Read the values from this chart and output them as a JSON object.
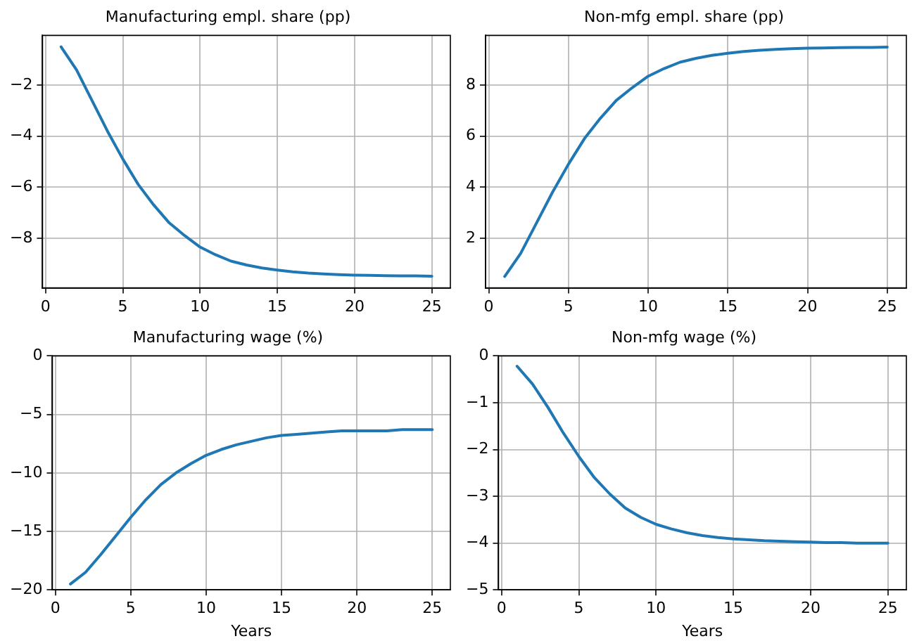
{
  "chart_data": [
    {
      "type": "line",
      "title": "Manufacturing empl. share (pp)",
      "x": [
        1,
        2,
        3,
        4,
        5,
        6,
        7,
        8,
        9,
        10,
        11,
        12,
        13,
        14,
        15,
        16,
        17,
        18,
        19,
        20,
        21,
        22,
        23,
        24,
        25
      ],
      "series": [
        {
          "color": "#1f77b4",
          "values": [
            -0.5,
            -1.4,
            -2.6,
            -3.8,
            -4.9,
            -5.9,
            -6.7,
            -7.4,
            -7.9,
            -8.35,
            -8.65,
            -8.9,
            -9.05,
            -9.17,
            -9.25,
            -9.32,
            -9.37,
            -9.4,
            -9.43,
            -9.45,
            -9.46,
            -9.47,
            -9.48,
            -9.48,
            -9.49
          ]
        }
      ],
      "xlim": [
        -0.2,
        26.2
      ],
      "xticks": [
        0,
        5,
        10,
        15,
        20,
        25
      ],
      "ylim": [
        -9.95,
        -0.05
      ],
      "yticks": [
        {
          "value": -8,
          "label": "−8"
        },
        {
          "value": -6,
          "label": "−6"
        },
        {
          "value": -4,
          "label": "−4"
        },
        {
          "value": -2,
          "label": "−2"
        }
      ],
      "grid": true,
      "legend": false,
      "marker": "none",
      "line_style": "solid"
    },
    {
      "type": "line",
      "title": "Non-mfg empl. share (pp)",
      "x": [
        1,
        2,
        3,
        4,
        5,
        6,
        7,
        8,
        9,
        10,
        11,
        12,
        13,
        14,
        15,
        16,
        17,
        18,
        19,
        20,
        21,
        22,
        23,
        24,
        25
      ],
      "series": [
        {
          "color": "#1f77b4",
          "values": [
            0.5,
            1.4,
            2.6,
            3.8,
            4.9,
            5.9,
            6.7,
            7.4,
            7.9,
            8.35,
            8.65,
            8.9,
            9.05,
            9.17,
            9.25,
            9.32,
            9.37,
            9.4,
            9.43,
            9.45,
            9.46,
            9.47,
            9.48,
            9.48,
            9.49
          ]
        }
      ],
      "xlim": [
        -0.2,
        26.2
      ],
      "xticks": [
        0,
        5,
        10,
        15,
        20,
        25
      ],
      "ylim": [
        0.05,
        9.95
      ],
      "yticks": [
        2,
        4,
        6,
        8
      ],
      "grid": true,
      "legend": false,
      "marker": "none",
      "line_style": "solid"
    },
    {
      "type": "line",
      "title": "Manufacturing wage (%)",
      "xlabel": "Years",
      "x": [
        1,
        2,
        3,
        4,
        5,
        6,
        7,
        8,
        9,
        10,
        11,
        12,
        13,
        14,
        15,
        16,
        17,
        18,
        19,
        20,
        21,
        22,
        23,
        24,
        25
      ],
      "series": [
        {
          "color": "#1f77b4",
          "values": [
            -19.5,
            -18.5,
            -17.0,
            -15.4,
            -13.8,
            -12.3,
            -11.0,
            -10.0,
            -9.2,
            -8.5,
            -8.0,
            -7.6,
            -7.3,
            -7.0,
            -6.8,
            -6.7,
            -6.6,
            -6.5,
            -6.4,
            -6.4,
            -6.4,
            -6.4,
            -6.3,
            -6.3,
            -6.3
          ]
        }
      ],
      "xlim": [
        -0.2,
        26.2
      ],
      "xticks": [
        0,
        5,
        10,
        15,
        20,
        25
      ],
      "ylim": [
        -20,
        0
      ],
      "yticks": [
        {
          "value": -20,
          "label": "−20"
        },
        {
          "value": -15,
          "label": "−15"
        },
        {
          "value": -10,
          "label": "−10"
        },
        {
          "value": -5,
          "label": "−5"
        },
        0
      ],
      "grid": true,
      "legend": false,
      "marker": "none",
      "line_style": "solid"
    },
    {
      "type": "line",
      "title": "Non-mfg wage (%)",
      "xlabel": "Years",
      "x": [
        1,
        2,
        3,
        4,
        5,
        6,
        7,
        8,
        9,
        10,
        11,
        12,
        13,
        14,
        15,
        16,
        17,
        18,
        19,
        20,
        21,
        22,
        23,
        24,
        25
      ],
      "series": [
        {
          "color": "#1f77b4",
          "values": [
            -0.22,
            -0.6,
            -1.1,
            -1.65,
            -2.15,
            -2.6,
            -2.95,
            -3.25,
            -3.45,
            -3.6,
            -3.7,
            -3.78,
            -3.84,
            -3.88,
            -3.91,
            -3.93,
            -3.95,
            -3.96,
            -3.97,
            -3.98,
            -3.99,
            -3.99,
            -4.0,
            -4.0,
            -4.0
          ]
        }
      ],
      "xlim": [
        -0.2,
        26.2
      ],
      "xticks": [
        0,
        5,
        10,
        15,
        20,
        25
      ],
      "ylim": [
        -5,
        0
      ],
      "yticks": [
        {
          "value": -5,
          "label": "−5"
        },
        {
          "value": -4,
          "label": "−4"
        },
        {
          "value": -3,
          "label": "−3"
        },
        {
          "value": -2,
          "label": "−2"
        },
        {
          "value": -1,
          "label": "−1"
        },
        0
      ],
      "grid": true,
      "legend": false,
      "marker": "none",
      "line_style": "solid"
    }
  ]
}
